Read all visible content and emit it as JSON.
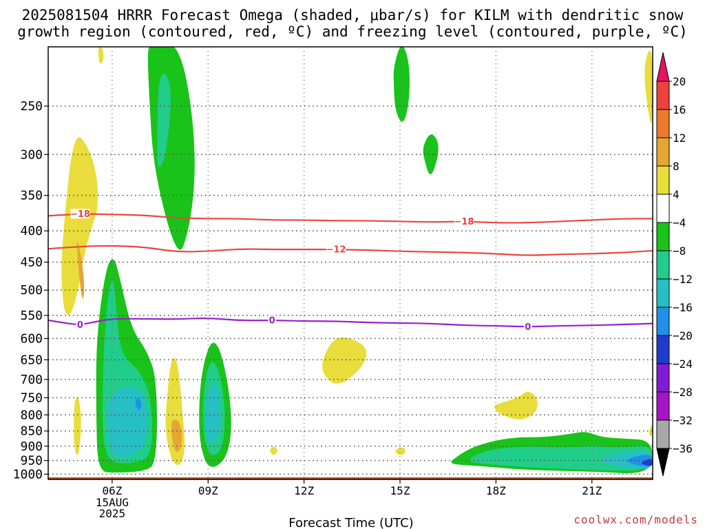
{
  "title_line1": "2025081504 HRRR Forecast Omega (shaded, μbar/s) for KILM with dendritic snow",
  "title_line2": "growth region (contoured, red, ºC) and freezing level (contoured, purple, ºC)",
  "credit": "coolwx.com/models",
  "chart_data": {
    "type": "contour",
    "xlabel": "Forecast Time (UTC)",
    "ylabel": "",
    "x_ticks": [
      "06Z",
      "09Z",
      "12Z",
      "15Z",
      "18Z",
      "21Z"
    ],
    "x_tick_hours": [
      6,
      9,
      12,
      15,
      18,
      21
    ],
    "x_date_label": [
      "15AUG",
      "2025"
    ],
    "xlim_hours": [
      4.0,
      22.9
    ],
    "y_ticks": [
      250,
      300,
      350,
      400,
      450,
      500,
      550,
      600,
      650,
      700,
      750,
      800,
      850,
      900,
      950,
      1000
    ],
    "ylim_hpa": [
      200,
      1020
    ],
    "grid": "dotted",
    "colorbar": {
      "labels": [
        "20",
        "16",
        "12",
        "8",
        "4",
        "−4",
        "−8",
        "−12",
        "−16",
        "−20",
        "−24",
        "−28",
        "−32",
        "−36"
      ],
      "colors": [
        "#e8135c",
        "#f0413c",
        "#ee7a2b",
        "#e6a634",
        "#e8dd3a",
        "#ffffff",
        "#19c319",
        "#21cd8a",
        "#25bfc5",
        "#2190e8",
        "#1f3ccc",
        "#7f1cd4",
        "#a514c8",
        "#a8a8a8",
        "#000000"
      ]
    },
    "contours": [
      {
        "label": "−18",
        "color": "#e8453c",
        "x": [
          4.0,
          5.0,
          6.0,
          7.0,
          8.0,
          9.0,
          10.0,
          11.0,
          12.0,
          13.0,
          14.0,
          15.0,
          16.0,
          17.0,
          18.0,
          19.0,
          20.0,
          21.0,
          22.0,
          22.9
        ],
        "p": [
          378,
          375,
          376,
          377,
          381,
          382,
          382,
          384,
          384,
          385,
          385,
          386,
          387,
          386,
          388,
          388,
          386,
          384,
          382,
          382
        ],
        "labels_at": [
          5.0,
          17.0
        ]
      },
      {
        "label": "−12",
        "color": "#e8453c",
        "x": [
          4.0,
          5.0,
          6.0,
          7.0,
          8.0,
          9.0,
          10.0,
          11.0,
          12.0,
          13.0,
          14.0,
          15.0,
          16.0,
          17.0,
          18.0,
          19.0,
          20.0,
          21.0,
          22.0,
          22.9
        ],
        "p": [
          428,
          424,
          423,
          425,
          433,
          432,
          428,
          429,
          429,
          429,
          430,
          432,
          433,
          434,
          436,
          439,
          437,
          436,
          434,
          431
        ],
        "labels_at": [
          13.0
        ]
      },
      {
        "label": "0",
        "color": "#9a1fcc",
        "x": [
          4.0,
          4.5,
          5.0,
          5.5,
          6.0,
          7.0,
          8.0,
          9.0,
          10.0,
          11.0,
          12.0,
          13.0,
          14.0,
          15.0,
          16.0,
          17.0,
          18.0,
          19.0,
          20.0,
          21.0,
          22.0,
          22.9
        ],
        "p": [
          560,
          566,
          570,
          563,
          557,
          557,
          558,
          555,
          561,
          560,
          562,
          562,
          565,
          566,
          567,
          571,
          572,
          574,
          572,
          571,
          569,
          567
        ],
        "labels_at": [
          5.0,
          11.0,
          19.0
        ]
      }
    ],
    "shaded_regions": [
      {
        "level": "−4 to −8",
        "color": "#19c319",
        "t": [
          7.15,
          7.1,
          7.25,
          7.6,
          7.8,
          8.0,
          8.3,
          8.55,
          8.6,
          8.4,
          8.05,
          7.3
        ],
        "p": [
          238,
          200,
          200,
          200,
          200,
          200,
          220,
          270,
          330,
          400,
          448,
          320
        ]
      },
      {
        "level": "−8 to −12",
        "color": "#21cd8a",
        "t": [
          7.4,
          7.45,
          7.9,
          7.7,
          7.45
        ],
        "p": [
          300,
          215,
          230,
          300,
          320
        ]
      },
      {
        "level": "4 to 8",
        "color": "#e8dd3a",
        "t": [
          4.45,
          4.8,
          5.3,
          5.55,
          5.55,
          5.45,
          5.15,
          4.85,
          4.55,
          4.4
        ],
        "p": [
          408,
          272,
          294,
          330,
          368,
          382,
          430,
          530,
          560,
          490
        ]
      },
      {
        "level": "8 to 12",
        "color": "#e6a634",
        "t": [
          4.85,
          5.05,
          5.15,
          5.05
        ],
        "p": [
          402,
          443,
          500,
          528
        ]
      },
      {
        "level": "−4 to −8",
        "color": "#19c319",
        "t": [
          5.5,
          5.8,
          6.05,
          6.25,
          6.6,
          7.1,
          7.4,
          7.4,
          7.0,
          6.1,
          5.55,
          5.5
        ],
        "p": [
          600,
          460,
          438,
          480,
          578,
          630,
          700,
          960,
          990,
          995,
          990,
          800
        ]
      },
      {
        "level": "−8 to −12",
        "color": "#21cd8a",
        "t": [
          5.7,
          5.85,
          6.05,
          6.15,
          6.3,
          6.9,
          7.25,
          7.25,
          6.6,
          6.0,
          5.7
        ],
        "p": [
          680,
          510,
          470,
          560,
          640,
          680,
          760,
          940,
          960,
          960,
          900
        ]
      },
      {
        "level": "−12 to −16",
        "color": "#25bfc5",
        "t": [
          5.85,
          6.2,
          6.9,
          7.15,
          7.0,
          6.1,
          5.85
        ],
        "p": [
          760,
          720,
          720,
          800,
          920,
          945,
          880
        ]
      },
      {
        "level": "−4 to −8",
        "color": "#19c319",
        "t": [
          8.75,
          9.05,
          9.35,
          9.65,
          9.75,
          9.6,
          9.2,
          8.9,
          8.7
        ],
        "p": [
          700,
          605,
          615,
          720,
          840,
          935,
          980,
          960,
          860
        ]
      },
      {
        "level": "−8 to −12",
        "color": "#21cd8a",
        "t": [
          8.85,
          9.1,
          9.4,
          9.55,
          9.45,
          9.05,
          8.85
        ],
        "p": [
          720,
          640,
          690,
          800,
          915,
          940,
          860
        ]
      },
      {
        "level": "−12 to −16",
        "color": "#25bfc5",
        "t": [
          8.9,
          9.25,
          9.45,
          9.1,
          8.9
        ],
        "p": [
          760,
          690,
          830,
          905,
          860
        ]
      },
      {
        "level": "4 to 8",
        "color": "#e8dd3a",
        "t": [
          7.7,
          7.85,
          8.05,
          8.2,
          8.3,
          8.1,
          7.85,
          7.65
        ],
        "p": [
          760,
          640,
          650,
          790,
          915,
          975,
          950,
          850
        ]
      },
      {
        "level": "8 to 12",
        "color": "#e6a634",
        "t": [
          7.85,
          8.15,
          8.2,
          8.0,
          7.85
        ],
        "p": [
          810,
          820,
          900,
          930,
          870
        ]
      },
      {
        "level": "4 to 8",
        "color": "#e8dd3a",
        "t": [
          4.8,
          4.95,
          5.05,
          4.95,
          4.8
        ],
        "p": [
          760,
          740,
          820,
          945,
          910
        ]
      },
      {
        "level": "4 to 8",
        "color": "#e8dd3a",
        "t": [
          12.55,
          13.0,
          13.85,
          14.0,
          13.7,
          13.05,
          12.6
        ],
        "p": [
          650,
          590,
          610,
          640,
          680,
          720,
          690
        ]
      },
      {
        "level": "4 to 8",
        "color": "#e8dd3a",
        "t": [
          17.95,
          18.7,
          19.0,
          19.3,
          19.3,
          18.8,
          18.1,
          17.95
        ],
        "p": [
          770,
          750,
          728,
          750,
          790,
          820,
          798,
          780
        ]
      },
      {
        "level": "−4 to −8",
        "color": "#19c319",
        "t": [
          14.8,
          15.05,
          15.3,
          15.3,
          15.1,
          14.85,
          14.8
        ],
        "p": [
          215,
          195,
          212,
          245,
          270,
          255,
          230
        ]
      },
      {
        "level": "−4 to −8",
        "color": "#19c319",
        "t": [
          15.7,
          15.95,
          16.2,
          16.2,
          15.95,
          15.75
        ],
        "p": [
          292,
          275,
          285,
          302,
          330,
          305
        ]
      },
      {
        "level": "−4 to −8",
        "color": "#19c319",
        "t": [
          16.6,
          17.2,
          18.0,
          18.7,
          19.5,
          20.3,
          20.8,
          21.3,
          22.0,
          22.9,
          22.9,
          21.0,
          19.0,
          17.5,
          16.8,
          16.6
        ],
        "p": [
          950,
          905,
          880,
          870,
          870,
          860,
          850,
          870,
          875,
          880,
          1002,
          990,
          985,
          970,
          965,
          960
        ]
      },
      {
        "level": "−8 to −12",
        "color": "#21cd8a",
        "t": [
          17.1,
          17.8,
          19.0,
          20.0,
          21.0,
          22.0,
          22.9,
          22.9,
          21.0,
          19.0,
          17.3
        ],
        "p": [
          945,
          910,
          900,
          905,
          900,
          905,
          895,
          990,
          985,
          975,
          960
        ]
      },
      {
        "level": "−12 to −16",
        "color": "#25bfc5",
        "t": [
          21.2,
          22.0,
          22.9,
          22.9,
          22.0,
          21.4
        ],
        "p": [
          945,
          918,
          915,
          985,
          975,
          960
        ]
      },
      {
        "level": "−16 to −20",
        "color": "#2190e8",
        "t": [
          22.0,
          22.5,
          22.9,
          22.9,
          22.4
        ],
        "p": [
          950,
          930,
          930,
          975,
          968
        ]
      },
      {
        "level": "−20 to −24",
        "color": "#1f3ccc",
        "t": [
          22.5,
          22.75,
          22.9,
          22.9,
          22.7
        ],
        "p": [
          958,
          945,
          945,
          970,
          968
        ]
      },
      {
        "level": "4 to 8",
        "color": "#e8dd3a",
        "t": [
          22.6,
          22.9,
          22.9,
          22.75
        ],
        "p": [
          215,
          195,
          275,
          255
        ]
      },
      {
        "level": "4 to 8",
        "color": "#e8dd3a",
        "t": [
          22.75,
          22.9,
          22.9
        ],
        "p": [
          862,
          820,
          870
        ]
      },
      {
        "level": "4 to 8",
        "color": "#e8dd3a",
        "t": [
          10.9,
          11.05,
          11.2,
          11.05
        ],
        "p": [
          915,
          898,
          915,
          935
        ]
      },
      {
        "level": "4 to 8",
        "color": "#e8dd3a",
        "t": [
          14.8,
          15.1,
          15.2,
          15.0
        ],
        "p": [
          915,
          900,
          920,
          935
        ]
      },
      {
        "level": "4 to 8",
        "color": "#e8dd3a",
        "t": [
          5.55,
          5.7,
          5.75,
          5.6
        ],
        "p": [
          200,
          200,
          210,
          215
        ]
      },
      {
        "level": "−16 to −20",
        "color": "#2190e8",
        "t": [
          6.7,
          6.8,
          6.95,
          6.82
        ],
        "p": [
          765,
          745,
          770,
          790
        ]
      }
    ],
    "ground": {
      "color": "#a8582d",
      "p_top": 1012
    }
  }
}
